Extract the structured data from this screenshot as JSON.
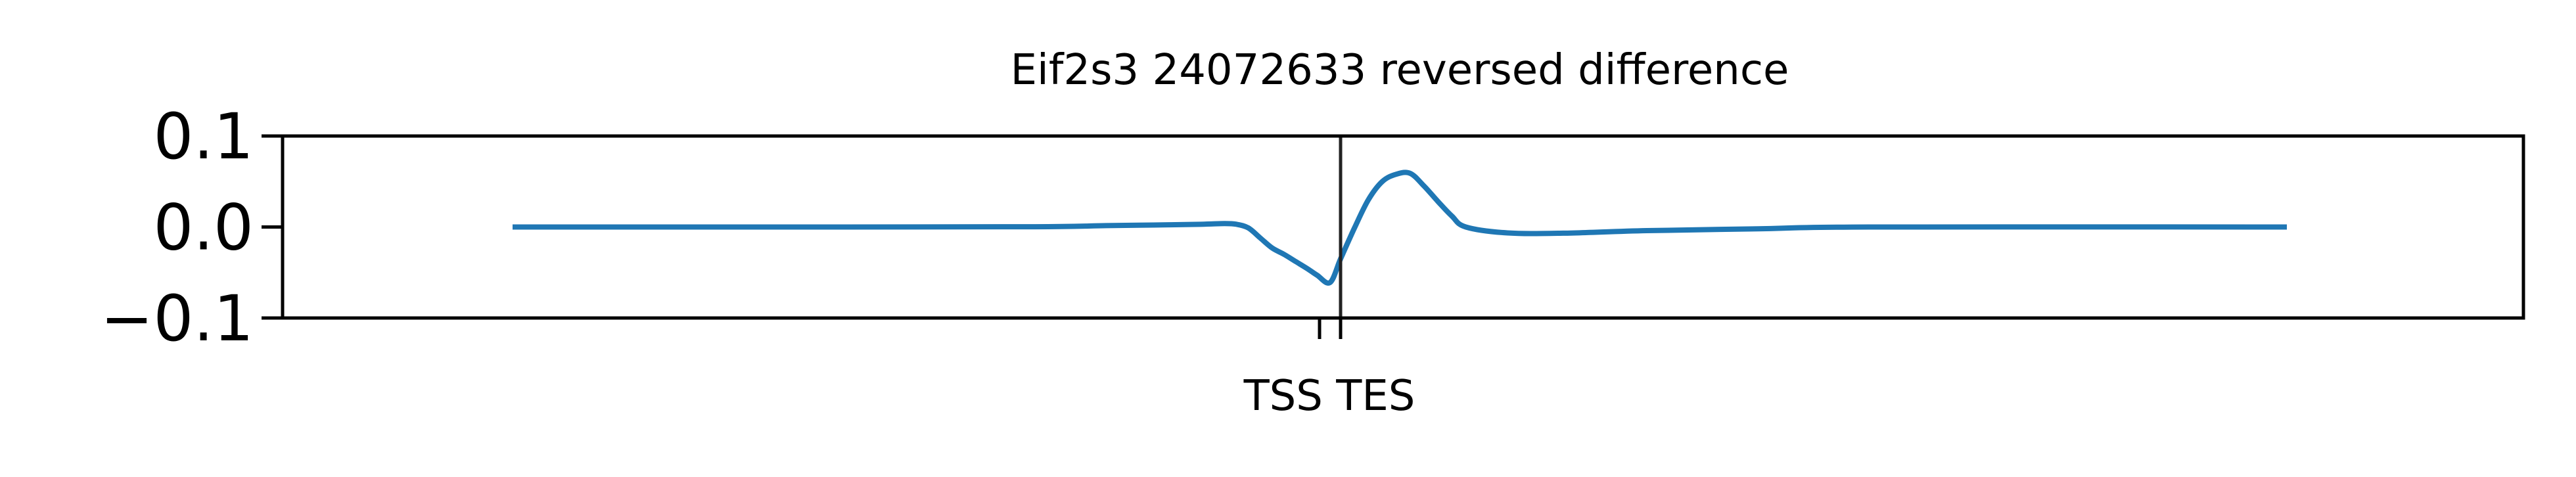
{
  "chart_data": {
    "type": "line",
    "title": "Eif2s3 24072633 reversed difference",
    "xlabel": "",
    "ylabel": "",
    "ylim": [
      -0.1,
      0.1
    ],
    "y_ticks": [
      0.1,
      0.0,
      -0.1
    ],
    "y_tick_labels": [
      "0.1",
      "0.0",
      "−0.1"
    ],
    "x_ticks": [
      {
        "label": "TSS",
        "x": 0.0
      },
      {
        "label": "TES",
        "x": 1.0
      }
    ],
    "x_tick_label_text": "TSS TES",
    "grid": false,
    "legend": "none",
    "colors": {
      "line": "#1f77b4",
      "axes": "#000000",
      "marker_line": "#222222"
    },
    "vertical_lines": [
      {
        "x": 1.0
      }
    ],
    "series": [
      {
        "color": "#1f77b4",
        "points": [
          {
            "x": -34.0,
            "y": 0.0
          },
          {
            "x": -20.0,
            "y": 0.0
          },
          {
            "x": -12.0,
            "y": 0.0003
          },
          {
            "x": -9.0,
            "y": 0.0015
          },
          {
            "x": -7.0,
            "y": 0.0022
          },
          {
            "x": -5.0,
            "y": 0.003
          },
          {
            "x": -4.0,
            "y": 0.0038
          },
          {
            "x": -3.5,
            "y": 0.003
          },
          {
            "x": -3.0,
            "y": -0.001
          },
          {
            "x": -2.5,
            "y": -0.012
          },
          {
            "x": -2.0,
            "y": -0.023
          },
          {
            "x": -1.5,
            "y": -0.03
          },
          {
            "x": -1.0,
            "y": -0.038
          },
          {
            "x": -0.5,
            "y": -0.046
          },
          {
            "x": -0.1,
            "y": -0.053
          },
          {
            "x": 0.5,
            "y": -0.061
          },
          {
            "x": 1.0,
            "y": -0.035
          },
          {
            "x": 1.5,
            "y": -0.001
          },
          {
            "x": 2.0,
            "y": 0.03
          },
          {
            "x": 2.5,
            "y": 0.05
          },
          {
            "x": 3.0,
            "y": 0.058
          },
          {
            "x": 3.5,
            "y": 0.059
          },
          {
            "x": 4.0,
            "y": 0.045
          },
          {
            "x": 4.5,
            "y": 0.028
          },
          {
            "x": 5.0,
            "y": 0.012
          },
          {
            "x": 5.5,
            "y": 0.0
          },
          {
            "x": 7.0,
            "y": -0.0065
          },
          {
            "x": 9.0,
            "y": -0.0068
          },
          {
            "x": 12.0,
            "y": -0.004
          },
          {
            "x": 16.0,
            "y": -0.002
          },
          {
            "x": 20.0,
            "y": 0.0
          },
          {
            "x": 35.0,
            "y": 0.0
          }
        ]
      }
    ]
  }
}
